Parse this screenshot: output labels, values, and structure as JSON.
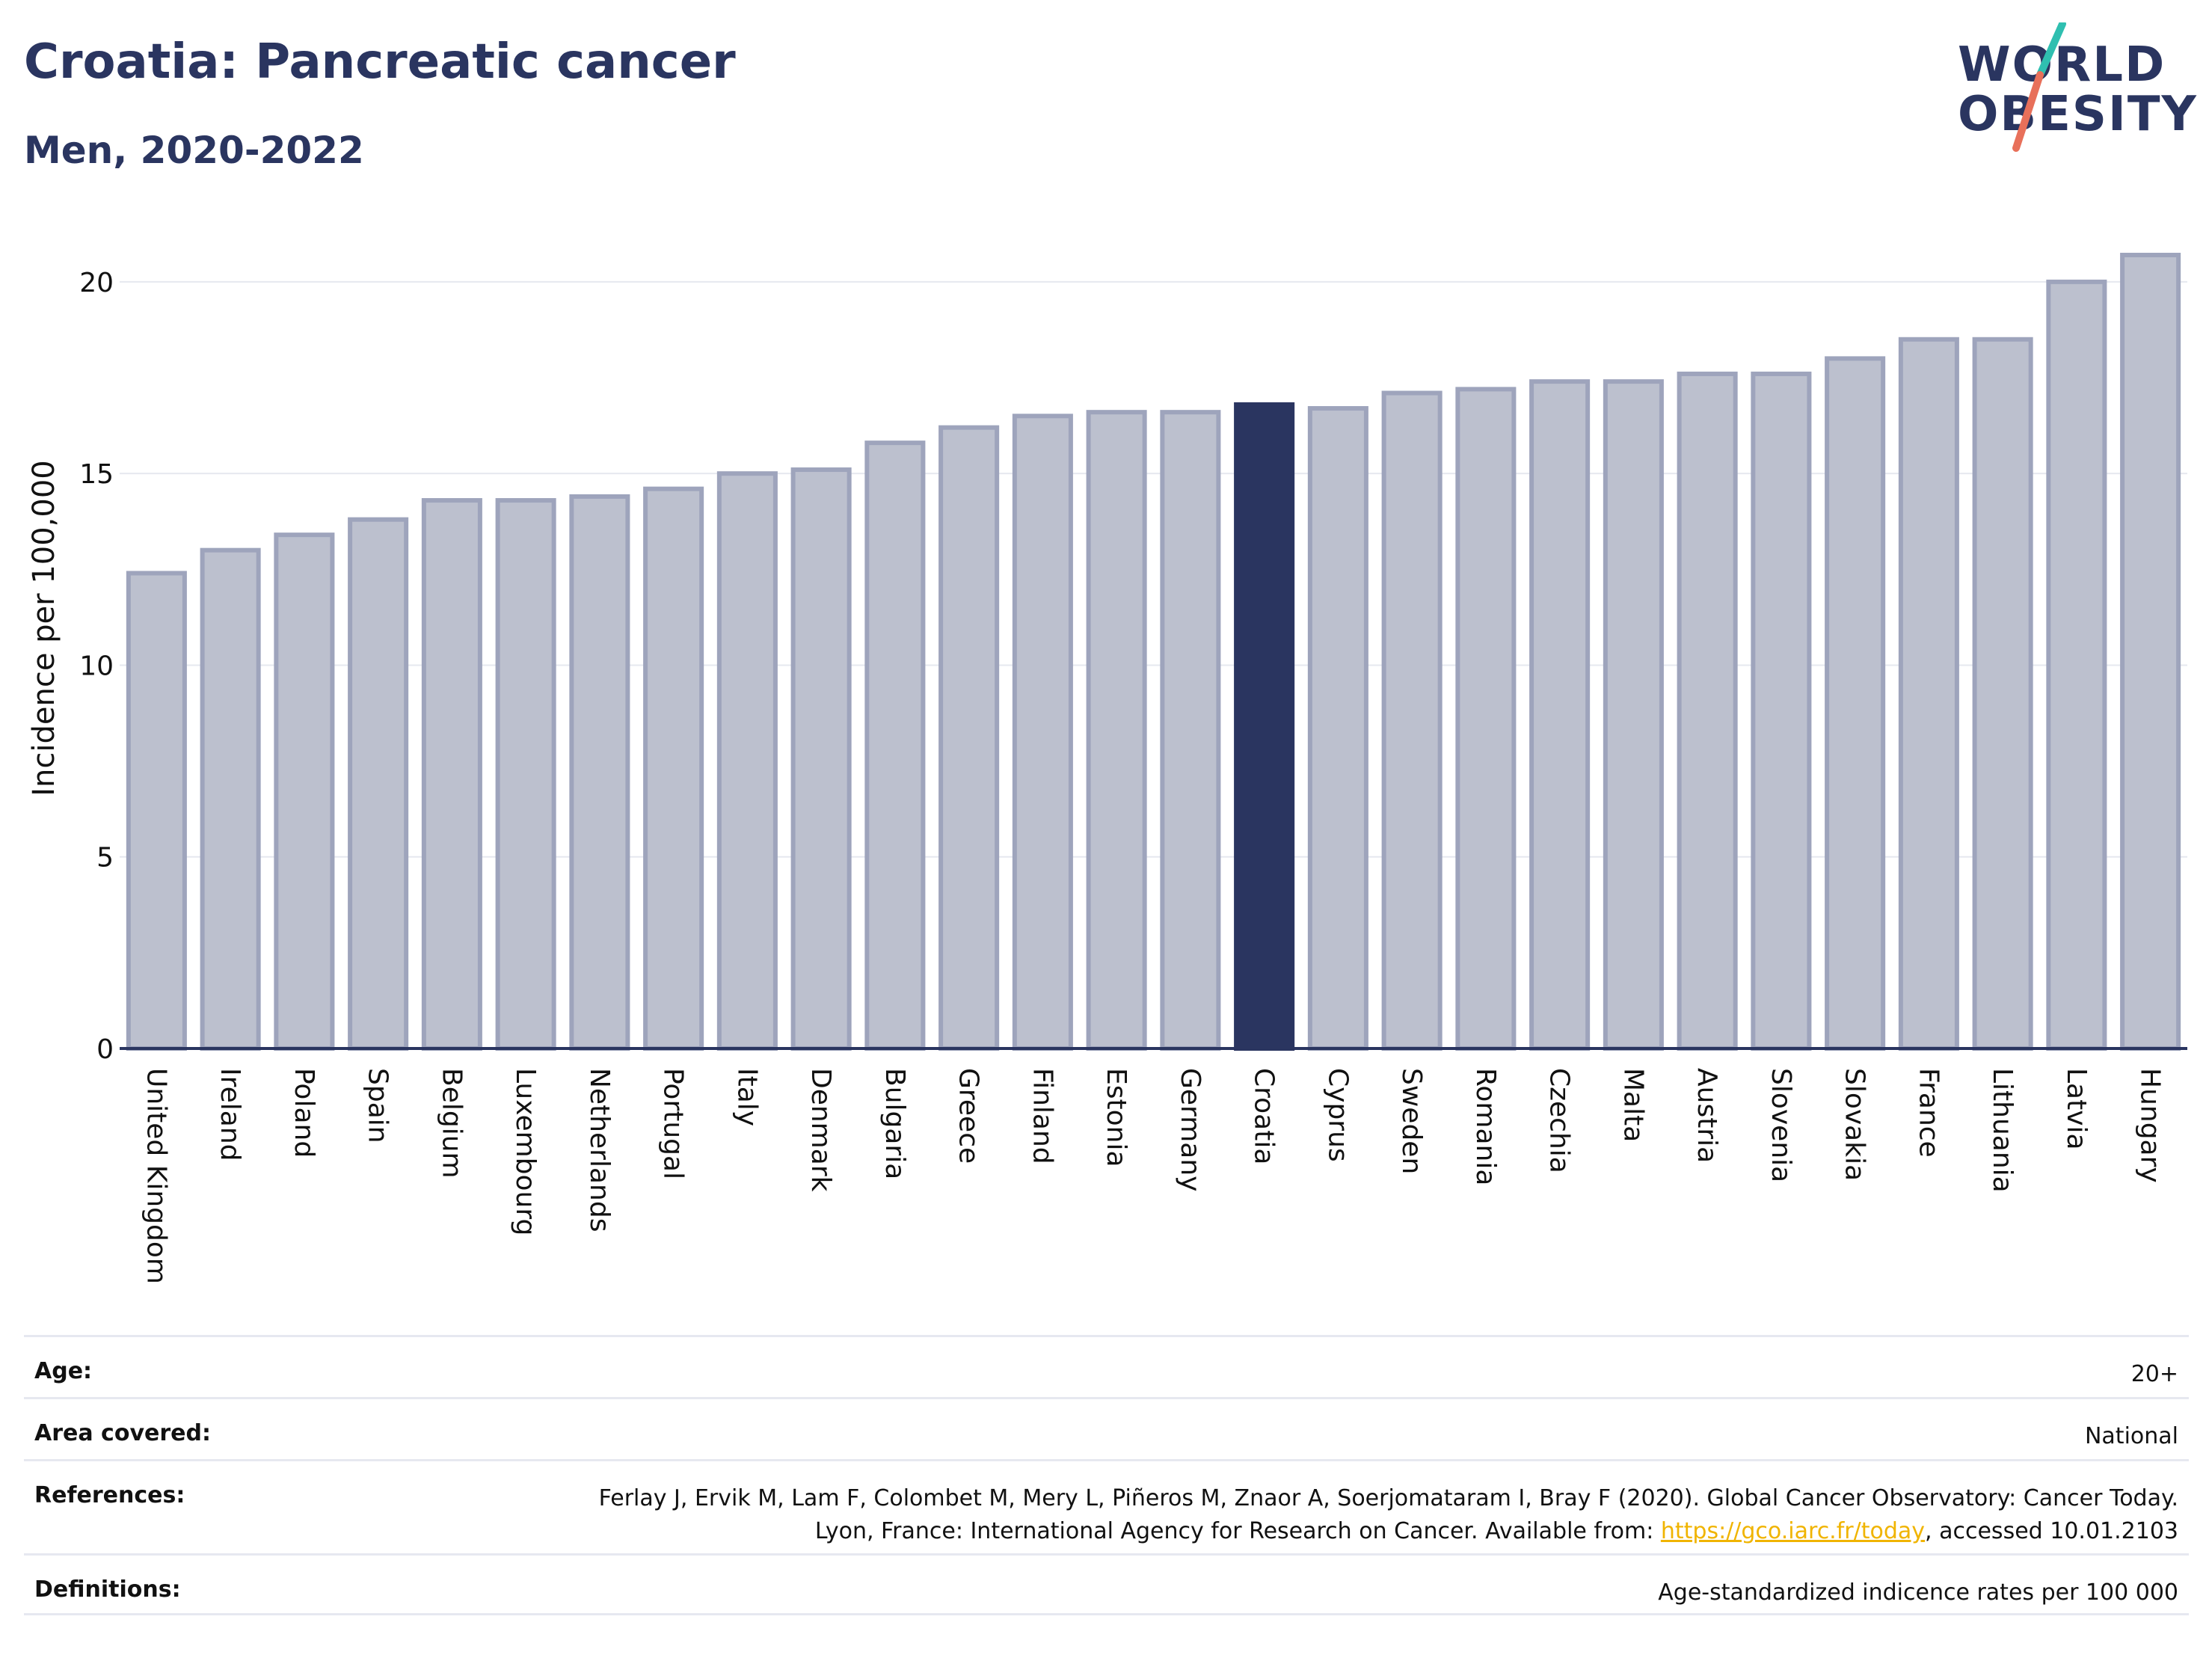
{
  "title": "Croatia: Pancreatic cancer",
  "subtitle": "Men, 2020-2022",
  "logo": {
    "line1": "WORLD",
    "line2": "OBESITY",
    "accent_teal": "#2fbfb0",
    "accent_coral": "#e8705a"
  },
  "chart_data": {
    "type": "bar",
    "ylabel": "Incidence per 100,000",
    "xlabel": "",
    "ylim": [
      0,
      21.5
    ],
    "yticks": [
      0,
      5,
      10,
      15,
      20
    ],
    "grid": true,
    "highlight": "Croatia",
    "colors": {
      "default_fill": "#bcc0ce",
      "default_stroke": "#9ea4bc",
      "highlight_fill": "#2a3560",
      "grid": "#e6e8ef",
      "axis": "#2a3560"
    },
    "categories": [
      "United Kingdom",
      "Ireland",
      "Poland",
      "Spain",
      "Belgium",
      "Luxembourg",
      "Netherlands",
      "Portugal",
      "Italy",
      "Denmark",
      "Bulgaria",
      "Greece",
      "Finland",
      "Estonia",
      "Germany",
      "Croatia",
      "Cyprus",
      "Sweden",
      "Romania",
      "Czechia",
      "Malta",
      "Austria",
      "Slovenia",
      "Slovakia",
      "France",
      "Lithuania",
      "Latvia",
      "Hungary"
    ],
    "values": [
      12.4,
      13.0,
      13.4,
      13.8,
      14.3,
      14.3,
      14.4,
      14.6,
      15.0,
      15.1,
      15.8,
      16.2,
      16.5,
      16.6,
      16.6,
      16.8,
      16.7,
      17.1,
      17.2,
      17.4,
      17.4,
      17.6,
      17.6,
      18.0,
      18.5,
      18.5,
      20.0,
      20.7
    ]
  },
  "info": [
    {
      "label": "Age:",
      "value": "20+"
    },
    {
      "label": "Area covered:",
      "value": "National"
    },
    {
      "label": "References:",
      "value_before": "Ferlay J, Ervik M, Lam F, Colombet M, Mery L, Piñeros M, Znaor A, Soerjomataram I, Bray F (2020). Global Cancer Observatory: Cancer Today. Lyon, France: International Agency for Research on Cancer. Available from: ",
      "link": "https://gco.iarc.fr/today",
      "value_after": ", accessed 10.01.2103"
    },
    {
      "label": "Definitions:",
      "value": "Age-standardized indicence rates per 100 000"
    }
  ]
}
